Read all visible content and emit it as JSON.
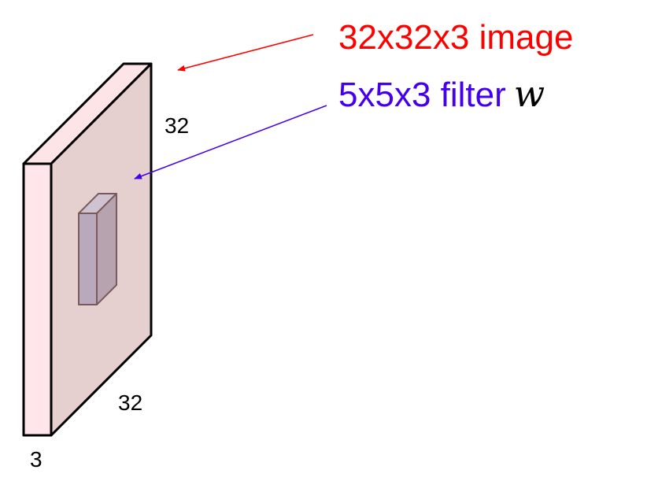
{
  "image_label": "32x32x3 image",
  "filter_label": "5x5x3 filter",
  "filter_symbol": "w",
  "dims": {
    "width": "32",
    "height": "32",
    "depth": "3"
  },
  "colors": {
    "image_label": "#ff0000",
    "filter_label": "#4400ee",
    "volume_front": "#ffe6ea",
    "volume_face": "#e5cfcf",
    "volume_top": "#fde4e6",
    "filter_front": "#b9a9bd",
    "filter_side": "#b7a2b0",
    "filter_top": "#cfc3d2",
    "edge": "#000000",
    "filter_edge": "#7a5b5b"
  }
}
